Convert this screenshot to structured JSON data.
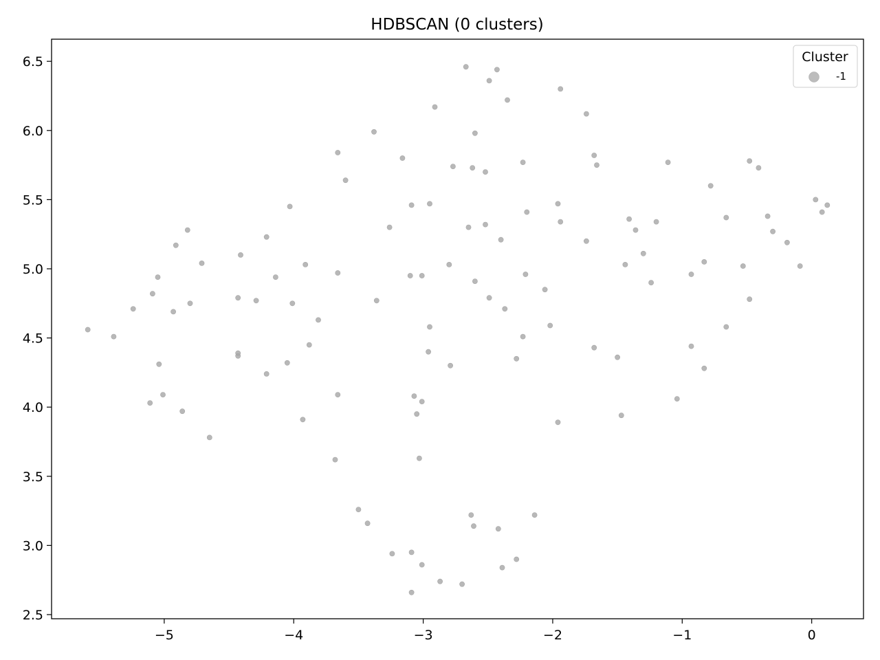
{
  "chart_data": {
    "type": "scatter",
    "title": "HDBSCAN (0 clusters)",
    "xlabel": "",
    "ylabel": "",
    "xlim": [
      -5.87,
      0.4
    ],
    "ylim": [
      2.47,
      6.66
    ],
    "xticks": [
      -5,
      -4,
      -3,
      -2,
      -1,
      0
    ],
    "xtick_labels": [
      "−5",
      "−4",
      "−3",
      "−2",
      "−1",
      "0"
    ],
    "yticks": [
      2.5,
      3.0,
      3.5,
      4.0,
      4.5,
      5.0,
      5.5,
      6.0,
      6.5
    ],
    "ytick_labels": [
      "2.5",
      "3.0",
      "3.5",
      "4.0",
      "4.5",
      "5.0",
      "5.5",
      "6.0",
      "6.5"
    ],
    "grid": false,
    "legend": {
      "title": "Cluster",
      "placement": "top-right",
      "entries": [
        "-1"
      ]
    },
    "series": [
      {
        "name": "-1",
        "color": "#a6a6a6",
        "points": [
          [
            -5.59,
            4.56
          ],
          [
            -5.39,
            4.51
          ],
          [
            -5.24,
            4.71
          ],
          [
            -5.11,
            4.03
          ],
          [
            -5.09,
            4.82
          ],
          [
            -5.05,
            4.94
          ],
          [
            -5.04,
            4.31
          ],
          [
            -5.01,
            4.09
          ],
          [
            -4.93,
            4.69
          ],
          [
            -4.91,
            5.17
          ],
          [
            -4.86,
            3.97
          ],
          [
            -4.82,
            5.28
          ],
          [
            -4.8,
            4.75
          ],
          [
            -4.71,
            5.04
          ],
          [
            -4.65,
            3.78
          ],
          [
            -4.43,
            4.79
          ],
          [
            -4.43,
            4.39
          ],
          [
            -4.43,
            4.37
          ],
          [
            -4.41,
            5.1
          ],
          [
            -4.29,
            4.77
          ],
          [
            -4.21,
            5.23
          ],
          [
            -4.21,
            4.24
          ],
          [
            -4.14,
            4.94
          ],
          [
            -4.05,
            4.32
          ],
          [
            -4.03,
            5.45
          ],
          [
            -4.01,
            4.75
          ],
          [
            -3.93,
            3.91
          ],
          [
            -3.91,
            5.03
          ],
          [
            -3.88,
            4.45
          ],
          [
            -3.81,
            4.63
          ],
          [
            -3.68,
            3.62
          ],
          [
            -3.66,
            4.97
          ],
          [
            -3.66,
            4.09
          ],
          [
            -3.66,
            5.84
          ],
          [
            -3.6,
            5.64
          ],
          [
            -3.5,
            3.26
          ],
          [
            -3.43,
            3.16
          ],
          [
            -3.38,
            5.99
          ],
          [
            -3.36,
            4.77
          ],
          [
            -3.26,
            5.3
          ],
          [
            -3.24,
            2.94
          ],
          [
            -3.16,
            5.8
          ],
          [
            -3.1,
            4.95
          ],
          [
            -3.09,
            2.95
          ],
          [
            -3.09,
            2.66
          ],
          [
            -3.09,
            5.46
          ],
          [
            -3.07,
            4.08
          ],
          [
            -3.05,
            3.95
          ],
          [
            -3.03,
            3.63
          ],
          [
            -3.01,
            4.95
          ],
          [
            -3.01,
            4.04
          ],
          [
            -3.01,
            2.86
          ],
          [
            -2.96,
            4.4
          ],
          [
            -2.95,
            5.47
          ],
          [
            -2.95,
            4.58
          ],
          [
            -2.91,
            6.17
          ],
          [
            -2.87,
            2.74
          ],
          [
            -2.8,
            5.03
          ],
          [
            -2.79,
            4.3
          ],
          [
            -2.77,
            5.74
          ],
          [
            -2.7,
            2.72
          ],
          [
            -2.67,
            6.46
          ],
          [
            -2.65,
            5.3
          ],
          [
            -2.63,
            3.22
          ],
          [
            -2.62,
            5.73
          ],
          [
            -2.61,
            3.14
          ],
          [
            -2.6,
            5.98
          ],
          [
            -2.6,
            4.91
          ],
          [
            -2.52,
            5.7
          ],
          [
            -2.52,
            5.32
          ],
          [
            -2.49,
            4.79
          ],
          [
            -2.49,
            6.36
          ],
          [
            -2.43,
            6.44
          ],
          [
            -2.42,
            3.12
          ],
          [
            -2.4,
            5.21
          ],
          [
            -2.39,
            2.84
          ],
          [
            -2.37,
            4.71
          ],
          [
            -2.35,
            6.22
          ],
          [
            -2.28,
            2.9
          ],
          [
            -2.28,
            4.35
          ],
          [
            -2.23,
            5.77
          ],
          [
            -2.23,
            4.51
          ],
          [
            -2.21,
            4.96
          ],
          [
            -2.2,
            5.41
          ],
          [
            -2.14,
            3.22
          ],
          [
            -2.06,
            4.85
          ],
          [
            -2.02,
            4.59
          ],
          [
            -1.96,
            3.89
          ],
          [
            -1.96,
            5.47
          ],
          [
            -1.94,
            5.34
          ],
          [
            -1.94,
            6.3
          ],
          [
            -1.74,
            6.12
          ],
          [
            -1.74,
            5.2
          ],
          [
            -1.68,
            4.43
          ],
          [
            -1.68,
            5.82
          ],
          [
            -1.66,
            5.75
          ],
          [
            -1.5,
            4.36
          ],
          [
            -1.47,
            3.94
          ],
          [
            -1.44,
            5.03
          ],
          [
            -1.41,
            5.36
          ],
          [
            -1.36,
            5.28
          ],
          [
            -1.3,
            5.11
          ],
          [
            -1.24,
            4.9
          ],
          [
            -1.2,
            5.34
          ],
          [
            -1.11,
            5.77
          ],
          [
            -1.04,
            4.06
          ],
          [
            -0.93,
            4.96
          ],
          [
            -0.93,
            4.44
          ],
          [
            -0.83,
            5.05
          ],
          [
            -0.83,
            4.28
          ],
          [
            -0.78,
            5.6
          ],
          [
            -0.66,
            4.58
          ],
          [
            -0.66,
            5.37
          ],
          [
            -0.53,
            5.02
          ],
          [
            -0.48,
            4.78
          ],
          [
            -0.48,
            5.78
          ],
          [
            -0.41,
            5.73
          ],
          [
            -0.34,
            5.38
          ],
          [
            -0.3,
            5.27
          ],
          [
            -0.19,
            5.19
          ],
          [
            -0.09,
            5.02
          ],
          [
            0.03,
            5.5
          ],
          [
            0.08,
            5.41
          ],
          [
            0.12,
            5.46
          ]
        ]
      }
    ]
  }
}
